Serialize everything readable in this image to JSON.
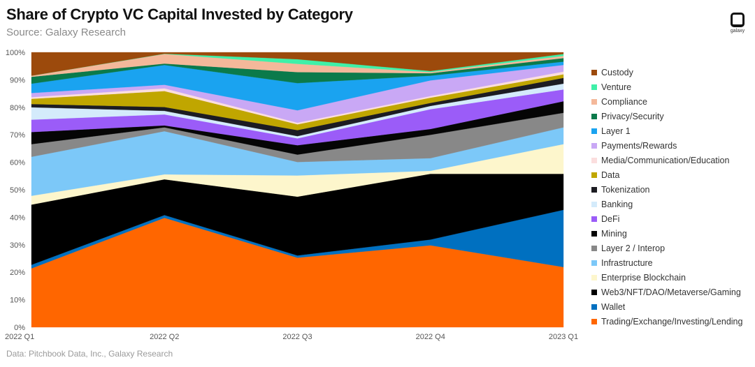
{
  "header": {
    "title": "Share of Crypto VC Capital Invested by Category",
    "subtitle": "Source: Galaxy Research"
  },
  "footer": {
    "note": "Data: Pitchbook Data, Inc., Galaxy Research"
  },
  "logo": {
    "text": "galaxy"
  },
  "chart_data": {
    "type": "area",
    "stacked": true,
    "normalized": true,
    "title": "Share of Crypto VC Capital Invested by Category",
    "xlabel": "",
    "ylabel": "",
    "ylim": [
      0,
      100
    ],
    "y_ticks": [
      "0%",
      "10%",
      "20%",
      "30%",
      "40%",
      "50%",
      "60%",
      "70%",
      "80%",
      "90%",
      "100%"
    ],
    "categories": [
      "2022 Q1",
      "2022 Q2",
      "2022 Q3",
      "2022 Q4",
      "2023 Q1"
    ],
    "legend_position": "right",
    "series": [
      {
        "name": "Trading/Exchange/Investing/Lending",
        "color": "#ff6600",
        "values": [
          21.4,
          39.8,
          25.3,
          29.8,
          21.9
        ]
      },
      {
        "name": "Wallet",
        "color": "#0070c0",
        "values": [
          1.3,
          1.0,
          0.8,
          2.1,
          20.8
        ]
      },
      {
        "name": "Web3/NFT/DAO/Metaverse/Gaming",
        "color": "#000000",
        "values": [
          21.9,
          13.0,
          21.4,
          23.9,
          13.1
        ]
      },
      {
        "name": "Enterprise Blockchain",
        "color": "#fdf6cc",
        "values": [
          3.2,
          1.8,
          7.7,
          1.1,
          10.8
        ]
      },
      {
        "name": "Infrastructure",
        "color": "#7cc8f8",
        "values": [
          14.2,
          15.7,
          4.9,
          4.6,
          6.1
        ]
      },
      {
        "name": "Layer 2 / Interop",
        "color": "#888888",
        "values": [
          4.6,
          1.4,
          2.7,
          8.5,
          5.3
        ]
      },
      {
        "name": "Mining",
        "color": "#050505",
        "values": [
          4.4,
          0.7,
          3.4,
          2.1,
          4.2
        ]
      },
      {
        "name": "DeFi",
        "color": "#9b5cf8",
        "values": [
          4.5,
          4.0,
          2.5,
          7.2,
          4.3
        ]
      },
      {
        "name": "Banking",
        "color": "#d4ebfb",
        "values": [
          4.5,
          1.3,
          0.8,
          1.2,
          2.1
        ]
      },
      {
        "name": "Tokenization",
        "color": "#1c1c22",
        "values": [
          1.2,
          1.4,
          2.2,
          1.1,
          2.1
        ]
      },
      {
        "name": "Data",
        "color": "#c0a600",
        "values": [
          1.9,
          5.8,
          2.1,
          1.9,
          1.3
        ]
      },
      {
        "name": "Media/Communication/Education",
        "color": "#fbdede",
        "values": [
          0.6,
          1.0,
          0.6,
          0.6,
          1.0
        ]
      },
      {
        "name": "Payments/Rewards",
        "color": "#c9a8f5",
        "values": [
          1.5,
          1.3,
          4.5,
          5.7,
          2.4
        ]
      },
      {
        "name": "Layer 1",
        "color": "#1aa3f0",
        "values": [
          3.4,
          7.2,
          9.9,
          1.7,
          1.2
        ]
      },
      {
        "name": "Privacy/Security",
        "color": "#0b7a4b",
        "values": [
          2.5,
          0.5,
          4.0,
          0.9,
          1.3
        ]
      },
      {
        "name": "Compliance",
        "color": "#f4b89a",
        "values": [
          0.4,
          3.5,
          3.0,
          0.4,
          0.8
        ]
      },
      {
        "name": "Venture",
        "color": "#3ff0a8",
        "values": [
          0.0,
          0.1,
          1.7,
          0.4,
          0.7
        ]
      },
      {
        "name": "Custody",
        "color": "#9c4a0c",
        "values": [
          8.5,
          0.5,
          2.5,
          6.8,
          0.6
        ]
      }
    ]
  }
}
